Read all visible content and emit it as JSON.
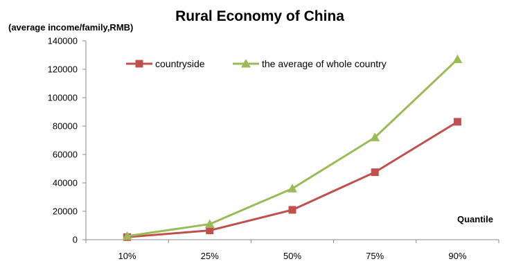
{
  "chart_data": {
    "type": "line",
    "title": "Rural Economy of China",
    "ylabel": "(average income/family,RMB)",
    "xlabel": "Quantile",
    "categories": [
      "10%",
      "25%",
      "50%",
      "75%",
      "90%"
    ],
    "ylim": [
      0,
      140000
    ],
    "yticks": [
      0,
      20000,
      40000,
      60000,
      80000,
      100000,
      120000,
      140000
    ],
    "grid": false,
    "legend_position": "top",
    "series": [
      {
        "name": "countryside",
        "values": [
          1800,
          6500,
          21000,
          47500,
          83000
        ],
        "color": "#c0504d",
        "marker": "square"
      },
      {
        "name": "the average of whole country",
        "values": [
          2500,
          11000,
          36000,
          72000,
          127000
        ],
        "color": "#9bbb59",
        "marker": "triangle"
      }
    ]
  }
}
